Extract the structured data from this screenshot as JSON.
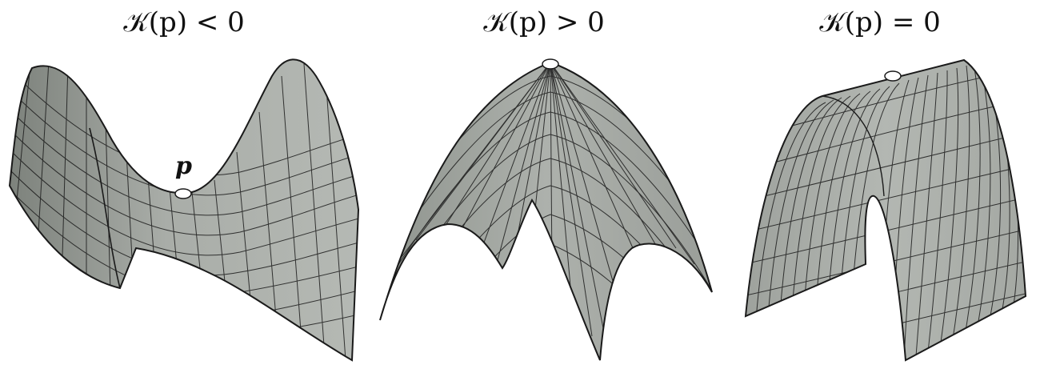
{
  "panels": [
    {
      "title": "𝒦(p) < 0",
      "surface": "saddle",
      "point_label": "p"
    },
    {
      "title": "𝒦(p) > 0",
      "surface": "dome"
    },
    {
      "title": "𝒦(p) = 0",
      "surface": "cylinder"
    }
  ],
  "colors": {
    "surface_fill": "#a8aca7",
    "surface_shade": "#8c908b",
    "mesh_line": "#1a1a1a",
    "point_fill": "#ffffff"
  }
}
